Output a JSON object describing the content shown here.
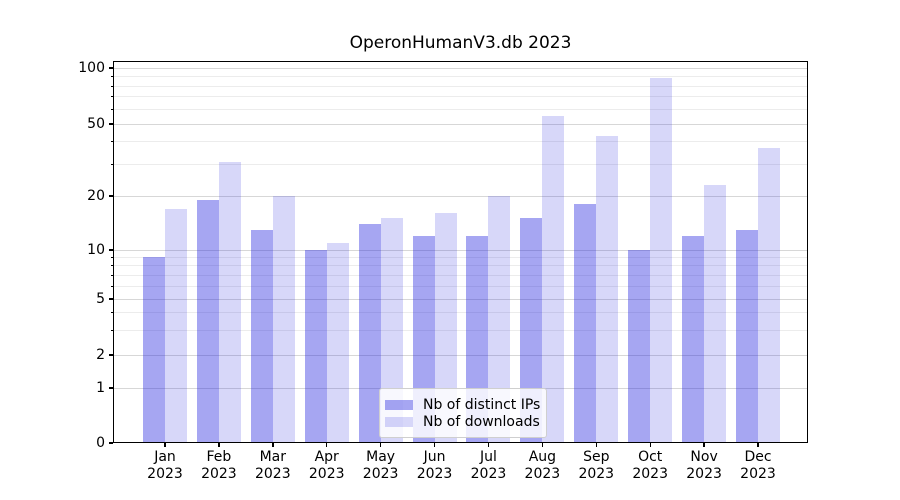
{
  "chart_data": {
    "type": "bar",
    "title": "OperonHumanV3.db 2023",
    "categories": [
      "Jan",
      "Feb",
      "Mar",
      "Apr",
      "May",
      "Jun",
      "Jul",
      "Aug",
      "Sep",
      "Oct",
      "Nov",
      "Dec"
    ],
    "year": "2023",
    "series": [
      {
        "name": "Nb of distinct IPs",
        "values": [
          9,
          19,
          13,
          10,
          14,
          12,
          12,
          15,
          18,
          10,
          12,
          13
        ],
        "alpha": 0.4
      },
      {
        "name": "Nb of downloads",
        "values": [
          17,
          31,
          20,
          11,
          15,
          16,
          20,
          55,
          43,
          88,
          23,
          37
        ],
        "alpha": 0.18
      }
    ],
    "xlabel": "",
    "ylabel": "",
    "y_axis": {
      "scale": "symlog",
      "ylim": [
        0,
        110
      ],
      "major_ticks": [
        100,
        50,
        20,
        10,
        5,
        2,
        1,
        0
      ],
      "minor_ticks": [
        90,
        80,
        70,
        60,
        40,
        30,
        9,
        8,
        7,
        6,
        4,
        3
      ]
    },
    "grid": true,
    "legend": {
      "position": "lower-center"
    },
    "colors": {
      "bar_base": "#2121df",
      "grid_major": "#d7d7d7",
      "grid_minor": "#ececec",
      "spine": "#000000",
      "text": "#000000"
    }
  }
}
